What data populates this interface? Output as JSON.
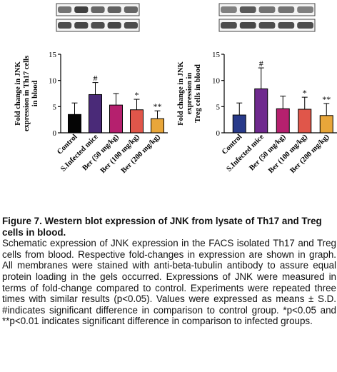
{
  "figure": {
    "panels": [
      {
        "id": "th17",
        "blot_bands": [
          {
            "label": "",
            "intensities": [
              0.55,
              0.75,
              0.6,
              0.62,
              0.6
            ]
          },
          {
            "label": "",
            "intensities": [
              0.7,
              0.72,
              0.7,
              0.72,
              0.7
            ]
          }
        ]
      },
      {
        "id": "treg",
        "blot_bands": [
          {
            "label": "",
            "intensities": [
              0.5,
              0.65,
              0.55,
              0.55,
              0.5
            ]
          },
          {
            "label": "",
            "intensities": [
              0.7,
              0.72,
              0.7,
              0.7,
              0.7
            ]
          }
        ]
      }
    ]
  },
  "chart_data": [
    {
      "type": "bar",
      "categories": [
        "Control",
        "S.Infected mice",
        "Ber (50 mg/kg)",
        "Ber (100 mg/kg)",
        "Ber (200 mg/kg)"
      ],
      "values": [
        3.5,
        7.3,
        5.3,
        4.4,
        2.7
      ],
      "errors": [
        2.2,
        2.3,
        2.2,
        2.0,
        1.5
      ],
      "significance": [
        "",
        "#",
        "",
        "*",
        "**"
      ],
      "colors": [
        "#050505",
        "#4a2a78",
        "#b5206e",
        "#e0564a",
        "#e8a63a"
      ],
      "title": "",
      "xlabel": "",
      "ylabel": "Fold change in JNK expression in Th17 cells in blood",
      "ylim": [
        0,
        15
      ],
      "yticks": [
        0,
        5,
        10,
        15
      ]
    },
    {
      "type": "bar",
      "categories": [
        "Control",
        "S.Infected mice",
        "Ber (50 mg/kg)",
        "Ber (100 mg/kg)",
        "Ber (200 mg/kg)"
      ],
      "values": [
        3.4,
        8.4,
        4.6,
        4.5,
        3.3
      ],
      "errors": [
        2.3,
        4.0,
        2.4,
        2.3,
        2.3
      ],
      "significance": [
        "",
        "#",
        "",
        "*",
        "**"
      ],
      "colors": [
        "#283a8a",
        "#6f2a8e",
        "#b5206e",
        "#e0564a",
        "#e8a63a"
      ],
      "title": "",
      "xlabel": "",
      "ylabel": "Fold change in JNK expression in Treg cells in blood",
      "ylim": [
        0,
        15
      ],
      "yticks": [
        0,
        5,
        10,
        15
      ]
    }
  ],
  "caption": {
    "title": "Figure 7. Western blot expression of JNK from lysate of Th17 and Treg cells in blood.",
    "body": "Schematic expression of JNK expression in the FACS isolated Th17 and Treg cells from blood. Respective fold-changes in expression are shown in graph. All membranes were stained with anti-beta-tubulin antibody to assure equal protein loading in the gels occurred. Expressions of JNK were measured in terms of fold-change compared to control. Experiments were repeated three times with similar results (p<0.05). Values were expressed as means ± S.D. #indicates significant difference in comparison to control group. *p<0.05 and **p<0.01 indicates significant difference in comparison to infected groups."
  }
}
